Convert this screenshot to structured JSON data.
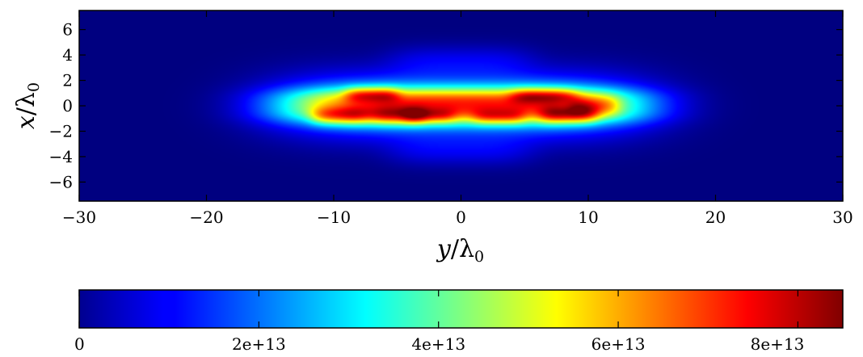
{
  "chart_data": [
    {
      "type": "heatmap",
      "title": "",
      "xlabel": "y/λ0",
      "ylabel": "x/λ0",
      "label_symbols": {
        "x_main": "y",
        "x_sub": "0",
        "y_main": "x",
        "y_sub": "0",
        "lambda": "/λ"
      },
      "xlim": [
        -30,
        30
      ],
      "ylim": [
        -7.5,
        7.5
      ],
      "xticks": [
        -30,
        -20,
        -10,
        0,
        10,
        20,
        30
      ],
      "xtick_labels": [
        "−30",
        "−20",
        "−10",
        "0",
        "10",
        "20",
        "30"
      ],
      "yticks": [
        6,
        4,
        2,
        0,
        -2,
        -4,
        -6
      ],
      "ytick_labels": [
        "6",
        "4",
        "2",
        "0",
        "−2",
        "−4",
        "−6"
      ],
      "colormap": "jet",
      "background_color": "#00008f",
      "value_range": [
        0,
        85000000000000.0
      ],
      "intensity_field": {
        "description_units": "intensity",
        "blobs": [
          {
            "y": 0,
            "x": 0,
            "sy": 10.5,
            "sx": 2.4,
            "value": 32000000000000.0
          },
          {
            "y": 0,
            "x": 0.6,
            "sy": 10.0,
            "sx": 0.9,
            "value": 32000000000000.0
          },
          {
            "y": 0,
            "x": -0.6,
            "sy": 10.0,
            "sx": 0.9,
            "value": 32000000000000.0
          },
          {
            "y": -9.5,
            "x": -0.8,
            "sy": 1.6,
            "sx": 0.7,
            "value": 22000000000000.0
          },
          {
            "y": -7,
            "x": 0.9,
            "sy": 1.5,
            "sx": 0.6,
            "value": 20000000000000.0
          },
          {
            "y": -5,
            "x": -0.8,
            "sy": 1.6,
            "sx": 0.7,
            "value": 18000000000000.0
          },
          {
            "y": -2.5,
            "x": -0.8,
            "sy": 1.4,
            "sx": 0.6,
            "value": 14000000000000.0
          },
          {
            "y": 6.5,
            "x": 0.8,
            "sy": 1.8,
            "sx": 0.6,
            "value": 20000000000000.0
          },
          {
            "y": 8.5,
            "x": -0.7,
            "sy": 1.6,
            "sx": 0.7,
            "value": 22000000000000.0
          },
          {
            "y": 10.5,
            "x": 0,
            "sy": 1.4,
            "sx": 0.8,
            "value": 16000000000000.0
          },
          {
            "y": 3,
            "x": -0.9,
            "sy": 1.4,
            "sx": 0.6,
            "value": 14000000000000.0
          },
          {
            "y": 0,
            "x": 3.6,
            "sy": 4.0,
            "sx": 1.2,
            "value": 7000000000000.0
          },
          {
            "y": 0,
            "x": -3.6,
            "sy": 4.0,
            "sx": 1.2,
            "value": 7000000000000.0
          }
        ]
      }
    },
    {
      "type": "colorbar",
      "orientation": "horizontal",
      "range": [
        0,
        85000000000000.0
      ],
      "ticks": [
        0,
        20000000000000.0,
        40000000000000.0,
        60000000000000.0,
        80000000000000.0
      ],
      "tick_labels": [
        "0",
        "2e+13",
        "4e+13",
        "6e+13",
        "8e+13"
      ],
      "colormap": "jet"
    }
  ]
}
